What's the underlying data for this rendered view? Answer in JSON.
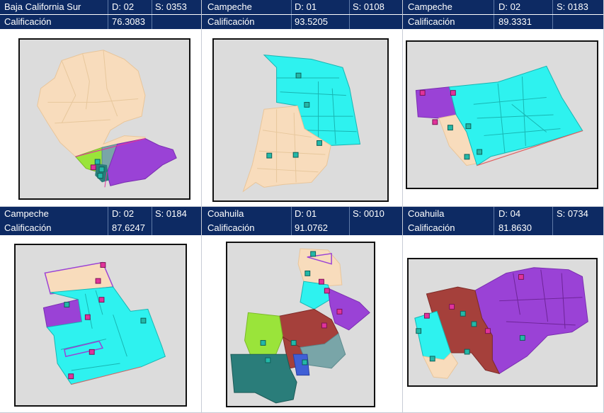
{
  "panels": [
    {
      "state": "Baja California Sur",
      "district": "D: 02",
      "section": "S: 0353",
      "score_label": "Calificación",
      "score": "76.3083"
    },
    {
      "state": "Campeche",
      "district": "D: 01",
      "section": "S: 0108",
      "score_label": "Calificación",
      "score": "93.5205"
    },
    {
      "state": "Campeche",
      "district": "D: 02",
      "section": "S: 0183",
      "score_label": "Calificación",
      "score": "89.3331"
    },
    {
      "state": "Campeche",
      "district": "D: 02",
      "section": "S: 0184",
      "score_label": "Calificación",
      "score": "87.6247"
    },
    {
      "state": "Coahuila",
      "district": "D: 01",
      "section": "S: 0010",
      "score_label": "Calificación",
      "score": "91.0762"
    },
    {
      "state": "Coahuila",
      "district": "D: 04",
      "section": "S: 0734",
      "score_label": "Calificación",
      "score": "81.8630"
    }
  ],
  "colors": {
    "header_bg": "#0d2a63",
    "map_bg": "#dcdcdc",
    "peach": "#f8dcbc",
    "cyan": "#2ef2ef",
    "purple": "#9a42d6",
    "green": "#9ae43a",
    "teal": "#2a7d7a",
    "brown": "#a5403b",
    "grey_teal": "#79a5a8",
    "marker_pink": "#e0339b",
    "marker_teal": "#23b8a8"
  },
  "icons": [
    "school-marker-icon"
  ]
}
